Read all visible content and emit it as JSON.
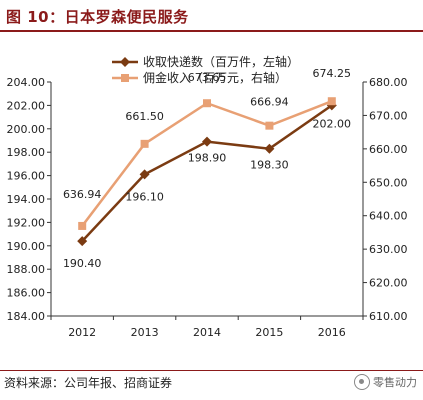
{
  "figure": {
    "title": "图 10：日本罗森便民服务"
  },
  "source": "资料来源：公司年报、招商证券",
  "watermark": "零售动力",
  "chart_data": {
    "type": "line",
    "categories": [
      "2012",
      "2013",
      "2014",
      "2015",
      "2016"
    ],
    "series": [
      {
        "name": "收取快递数（百万件，左轴）",
        "axis": "left",
        "color": "#7b3b12",
        "marker": "diamond",
        "values": [
          190.4,
          196.1,
          198.9,
          198.3,
          202.0
        ],
        "labels": [
          "190.40",
          "196.10",
          "198.90",
          "198.30",
          "202.00"
        ]
      },
      {
        "name": "佣金收入（百万元，右轴）",
        "axis": "right",
        "color": "#e8a074",
        "marker": "square",
        "values": [
          636.94,
          661.5,
          673.65,
          666.94,
          674.25
        ],
        "labels": [
          "636.94",
          "661.50",
          "673.65",
          "666.94",
          "674.25"
        ]
      }
    ],
    "y_left": {
      "min": 184,
      "max": 204,
      "step": 2,
      "ticks": [
        "184.00",
        "186.00",
        "188.00",
        "190.00",
        "192.00",
        "194.00",
        "196.00",
        "198.00",
        "200.00",
        "202.00",
        "204.00"
      ]
    },
    "y_right": {
      "min": 610,
      "max": 680,
      "step": 10,
      "ticks": [
        "610.00",
        "620.00",
        "630.00",
        "640.00",
        "650.00",
        "660.00",
        "670.00",
        "680.00"
      ]
    },
    "grid": false,
    "legend": "top-center"
  }
}
